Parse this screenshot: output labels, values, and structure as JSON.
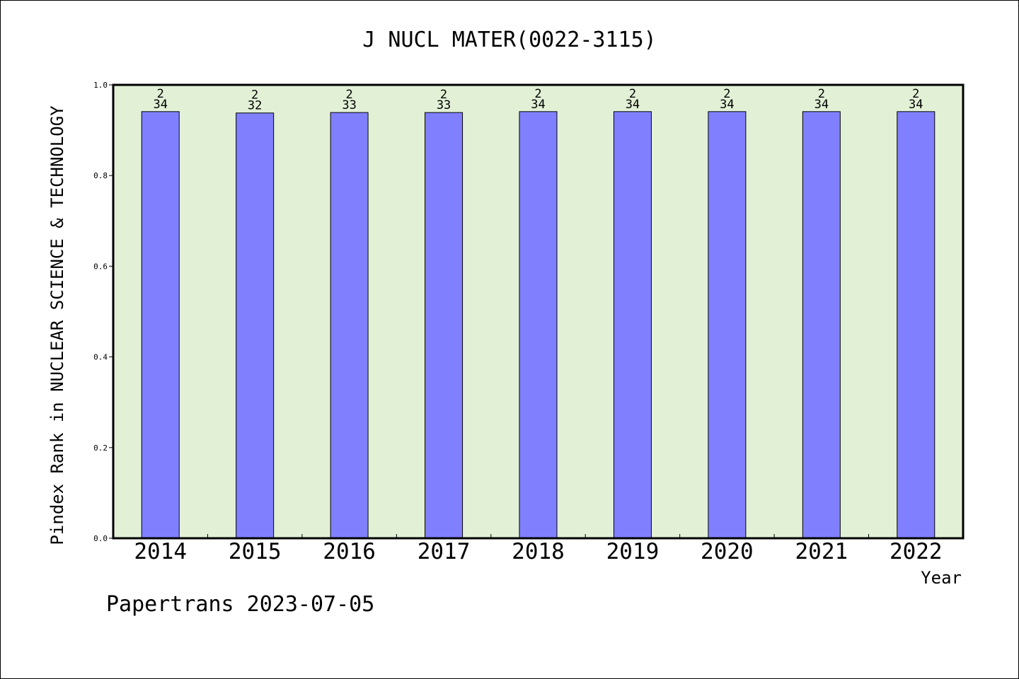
{
  "chart_data": {
    "type": "bar",
    "title": "J NUCL MATER(0022-3115)",
    "xlabel": "Year",
    "ylabel": "Pindex Rank in NUCLEAR SCIENCE & TECHNOLOGY",
    "categories": [
      "2014",
      "2015",
      "2016",
      "2017",
      "2018",
      "2019",
      "2020",
      "2021",
      "2022"
    ],
    "values": [
      0.941,
      0.938,
      0.939,
      0.939,
      0.941,
      0.941,
      0.941,
      0.941,
      0.941
    ],
    "data_labels": [
      {
        "top": "2",
        "bottom": "34"
      },
      {
        "top": "2",
        "bottom": "32"
      },
      {
        "top": "2",
        "bottom": "33"
      },
      {
        "top": "2",
        "bottom": "33"
      },
      {
        "top": "2",
        "bottom": "34"
      },
      {
        "top": "2",
        "bottom": "34"
      },
      {
        "top": "2",
        "bottom": "34"
      },
      {
        "top": "2",
        "bottom": "34"
      },
      {
        "top": "2",
        "bottom": "34"
      }
    ],
    "ylim": [
      0,
      1.0
    ],
    "yticks": [
      "0.0",
      "0.2",
      "0.4",
      "0.6",
      "0.8",
      "1.0"
    ],
    "grid": false,
    "colors": {
      "bar": "#8080ff",
      "plot_background": "#e2f0d6",
      "axes": "#000000"
    }
  },
  "footer": "Papertrans 2023-07-05"
}
